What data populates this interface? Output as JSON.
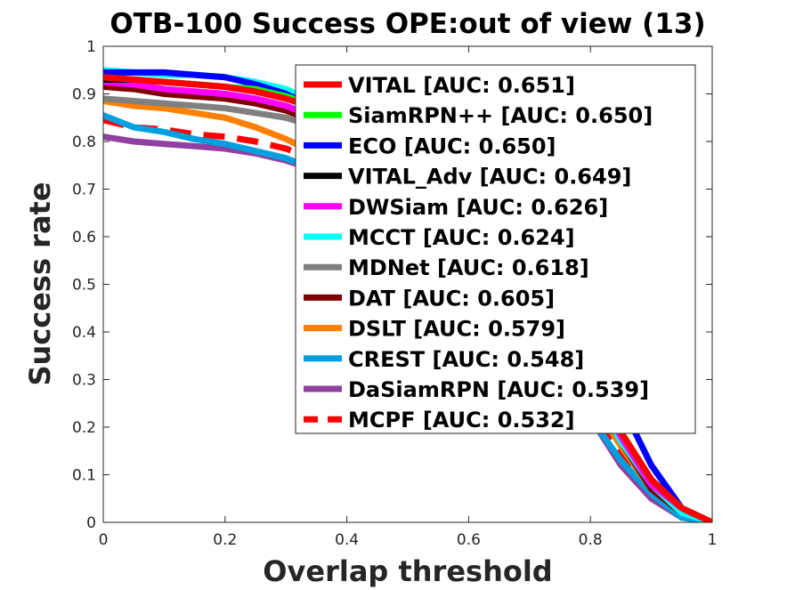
{
  "chart_data": {
    "type": "line",
    "title": "OTB-100 Success OPE:out of view (13)",
    "xlabel": "Overlap threshold",
    "ylabel": "Success rate",
    "xlim": [
      0,
      1
    ],
    "ylim": [
      0,
      1
    ],
    "x_ticks": [
      "0",
      "0.2",
      "0.4",
      "0.6",
      "0.8",
      "1"
    ],
    "y_ticks": [
      "0",
      "0.1",
      "0.2",
      "0.3",
      "0.4",
      "0.5",
      "0.6",
      "0.7",
      "0.8",
      "0.9",
      "1"
    ],
    "grid": false,
    "legend_position": "top-right",
    "x": [
      0,
      0.05,
      0.1,
      0.15,
      0.2,
      0.25,
      0.3,
      0.35,
      0.4,
      0.45,
      0.5,
      0.55,
      0.6,
      0.65,
      0.7,
      0.75,
      0.8,
      0.85,
      0.9,
      0.95,
      1
    ],
    "series": [
      {
        "name": "VITAL [AUC: 0.651]",
        "color": "#ff0000",
        "style": "solid",
        "values": [
          0.935,
          0.93,
          0.925,
          0.92,
          0.915,
          0.905,
          0.89,
          0.87,
          0.84,
          0.8,
          0.76,
          0.71,
          0.66,
          0.6,
          0.52,
          0.42,
          0.31,
          0.19,
          0.09,
          0.03,
          0.0
        ]
      },
      {
        "name": "SiamRPN++ [AUC: 0.650]",
        "color": "#00ff00",
        "style": "solid",
        "values": [
          0.935,
          0.93,
          0.925,
          0.92,
          0.915,
          0.91,
          0.895,
          0.875,
          0.845,
          0.805,
          0.76,
          0.71,
          0.66,
          0.6,
          0.52,
          0.42,
          0.31,
          0.19,
          0.09,
          0.03,
          0.0
        ]
      },
      {
        "name": "ECO [AUC: 0.650]",
        "color": "#0000ff",
        "style": "solid",
        "values": [
          0.945,
          0.945,
          0.945,
          0.94,
          0.935,
          0.92,
          0.9,
          0.87,
          0.83,
          0.79,
          0.74,
          0.69,
          0.64,
          0.58,
          0.51,
          0.43,
          0.34,
          0.25,
          0.12,
          0.03,
          0.0
        ]
      },
      {
        "name": "VITAL_Adv [AUC: 0.649]",
        "color": "#000000",
        "style": "solid",
        "values": [
          0.93,
          0.93,
          0.925,
          0.92,
          0.915,
          0.905,
          0.89,
          0.87,
          0.84,
          0.8,
          0.76,
          0.71,
          0.66,
          0.6,
          0.52,
          0.42,
          0.31,
          0.19,
          0.09,
          0.03,
          0.0
        ]
      },
      {
        "name": "DWSiam [AUC: 0.626]",
        "color": "#ff00ff",
        "style": "solid",
        "values": [
          0.925,
          0.92,
          0.91,
          0.905,
          0.9,
          0.89,
          0.875,
          0.85,
          0.82,
          0.78,
          0.74,
          0.69,
          0.64,
          0.58,
          0.5,
          0.41,
          0.3,
          0.18,
          0.08,
          0.03,
          0.0
        ]
      },
      {
        "name": "MCCT [AUC: 0.624]",
        "color": "#00ffff",
        "style": "solid",
        "values": [
          0.95,
          0.945,
          0.94,
          0.94,
          0.935,
          0.925,
          0.91,
          0.88,
          0.84,
          0.79,
          0.74,
          0.68,
          0.62,
          0.55,
          0.47,
          0.38,
          0.28,
          0.17,
          0.08,
          0.02,
          0.0
        ]
      },
      {
        "name": "MDNet [AUC: 0.618]",
        "color": "#808080",
        "style": "solid",
        "values": [
          0.89,
          0.885,
          0.88,
          0.875,
          0.87,
          0.86,
          0.85,
          0.83,
          0.8,
          0.76,
          0.72,
          0.67,
          0.62,
          0.56,
          0.49,
          0.4,
          0.3,
          0.18,
          0.08,
          0.02,
          0.0
        ]
      },
      {
        "name": "DAT [AUC: 0.605]",
        "color": "#800000",
        "style": "solid",
        "values": [
          0.915,
          0.91,
          0.9,
          0.895,
          0.89,
          0.88,
          0.865,
          0.84,
          0.81,
          0.77,
          0.72,
          0.67,
          0.61,
          0.55,
          0.47,
          0.38,
          0.28,
          0.17,
          0.07,
          0.02,
          0.0
        ]
      },
      {
        "name": "DSLT [AUC: 0.579]",
        "color": "#ff8000",
        "style": "solid",
        "values": [
          0.885,
          0.875,
          0.87,
          0.86,
          0.85,
          0.83,
          0.805,
          0.775,
          0.74,
          0.7,
          0.66,
          0.61,
          0.56,
          0.5,
          0.43,
          0.35,
          0.26,
          0.16,
          0.07,
          0.02,
          0.0
        ]
      },
      {
        "name": "CREST [AUC: 0.548]",
        "color": "#00a0e0",
        "style": "solid",
        "values": [
          0.855,
          0.83,
          0.82,
          0.805,
          0.795,
          0.78,
          0.765,
          0.74,
          0.71,
          0.67,
          0.62,
          0.57,
          0.52,
          0.46,
          0.39,
          0.31,
          0.22,
          0.13,
          0.06,
          0.01,
          0.0
        ]
      },
      {
        "name": "DaSiamRPN [AUC: 0.539]",
        "color": "#9040a0",
        "style": "solid",
        "values": [
          0.81,
          0.8,
          0.795,
          0.79,
          0.785,
          0.775,
          0.76,
          0.74,
          0.71,
          0.67,
          0.63,
          0.58,
          0.53,
          0.47,
          0.4,
          0.31,
          0.22,
          0.12,
          0.05,
          0.01,
          0.0
        ]
      },
      {
        "name": "MCPF [AUC: 0.532]",
        "color": "#ff0000",
        "style": "dashed",
        "values": [
          0.845,
          0.83,
          0.825,
          0.815,
          0.81,
          0.8,
          0.785,
          0.76,
          0.73,
          0.69,
          0.65,
          0.6,
          0.55,
          0.49,
          0.42,
          0.33,
          0.24,
          0.14,
          0.07,
          0.02,
          0.0
        ]
      }
    ]
  }
}
